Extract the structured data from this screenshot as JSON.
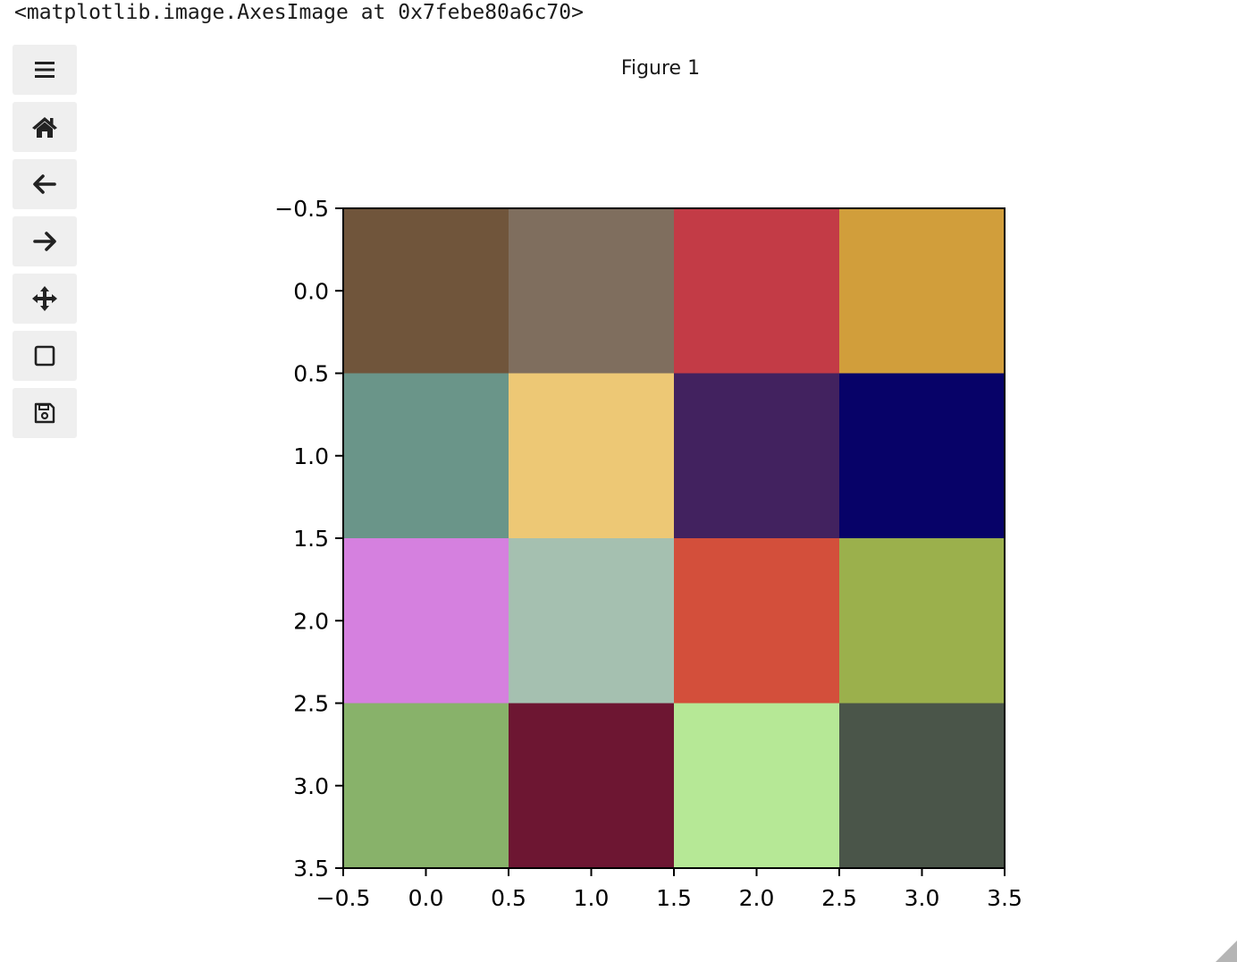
{
  "output": {
    "repr": "<matplotlib.image.AxesImage at 0x7febe80a6c70>"
  },
  "figure": {
    "title": "Figure 1"
  },
  "toolbar": {
    "buttons": [
      {
        "name": "menu-button",
        "icon": "hamburger-menu-icon"
      },
      {
        "name": "home-button",
        "icon": "home-icon"
      },
      {
        "name": "back-button",
        "icon": "arrow-left-icon"
      },
      {
        "name": "forward-button",
        "icon": "arrow-right-icon"
      },
      {
        "name": "pan-button",
        "icon": "move-arrows-icon"
      },
      {
        "name": "zoom-rect-button",
        "icon": "square-icon"
      },
      {
        "name": "download-button",
        "icon": "floppy-disk-icon"
      }
    ]
  },
  "chart_data": {
    "type": "heatmap",
    "title": "",
    "xlabel": "",
    "ylabel": "",
    "xlim": [
      -0.5,
      3.5
    ],
    "ylim": [
      3.5,
      -0.5
    ],
    "x_tick_labels": [
      "−0.5",
      "0.0",
      "0.5",
      "1.0",
      "1.5",
      "2.0",
      "2.5",
      "3.0",
      "3.5"
    ],
    "y_tick_labels": [
      "−0.5",
      "0.0",
      "0.5",
      "1.0",
      "1.5",
      "2.0",
      "2.5",
      "3.0",
      "3.5"
    ],
    "tick_values": [
      -0.5,
      0.0,
      0.5,
      1.0,
      1.5,
      2.0,
      2.5,
      3.0,
      3.5
    ],
    "grid": false,
    "cells": [
      [
        "#70553b",
        "#7f6e5e",
        "#c33b46",
        "#d19e3b"
      ],
      [
        "#6a9589",
        "#edc875",
        "#42225f",
        "#070268"
      ],
      [
        "#d580df",
        "#a5c0b0",
        "#d34f3b",
        "#9bb04c"
      ],
      [
        "#88b26a",
        "#6d1632",
        "#b6e896",
        "#4a5549"
      ]
    ]
  }
}
